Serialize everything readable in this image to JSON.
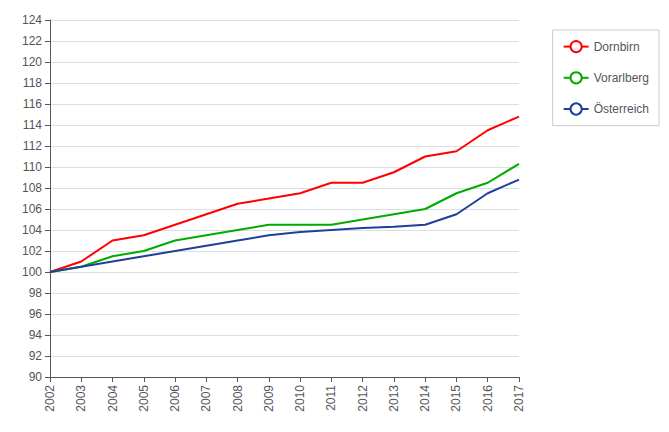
{
  "chart_data": {
    "type": "line",
    "x": [
      2002,
      2003,
      2004,
      2005,
      2006,
      2007,
      2008,
      2009,
      2010,
      2011,
      2012,
      2013,
      2014,
      2015,
      2016,
      2017
    ],
    "series": [
      {
        "name": "Dornbirn",
        "color": "#ff0000",
        "values": [
          100.0,
          101.0,
          103.0,
          103.5,
          104.5,
          105.5,
          106.5,
          107.0,
          107.5,
          108.5,
          108.5,
          109.5,
          111.0,
          111.5,
          113.5,
          114.8
        ]
      },
      {
        "name": "Vorarlberg",
        "color": "#00aa00",
        "values": [
          100.0,
          100.5,
          101.5,
          102.0,
          103.0,
          103.5,
          104.0,
          104.5,
          104.5,
          104.5,
          105.0,
          105.5,
          106.0,
          107.5,
          108.5,
          110.3
        ]
      },
      {
        "name": "Österreich",
        "color": "#1f3f99",
        "values": [
          100.0,
          100.5,
          101.0,
          101.5,
          102.0,
          102.5,
          103.0,
          103.5,
          103.8,
          104.0,
          104.2,
          104.3,
          104.5,
          105.5,
          107.5,
          108.8
        ]
      }
    ],
    "xlim": [
      2002,
      2017
    ],
    "xticks": [
      2002,
      2003,
      2004,
      2005,
      2006,
      2007,
      2008,
      2009,
      2010,
      2011,
      2012,
      2013,
      2014,
      2015,
      2016,
      2017
    ],
    "ylim": [
      90,
      124
    ],
    "yticks": [
      90,
      92,
      94,
      96,
      98,
      100,
      102,
      104,
      106,
      108,
      110,
      112,
      114,
      116,
      118,
      120,
      122,
      124
    ],
    "grid": true,
    "legend": "right"
  }
}
